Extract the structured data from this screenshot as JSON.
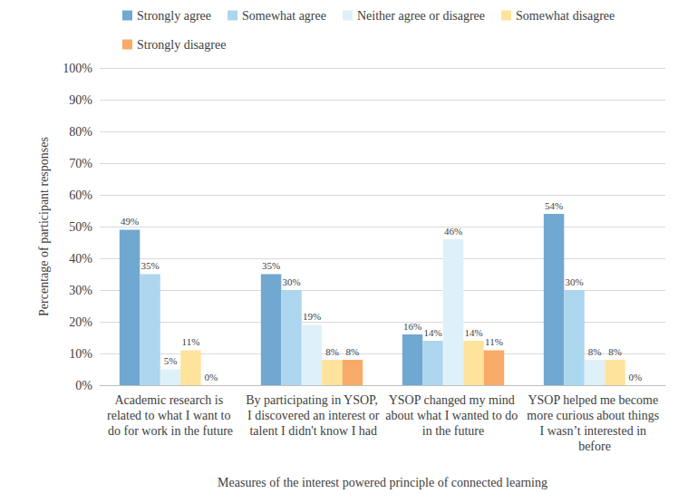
{
  "chart_data": {
    "type": "bar",
    "x_label": "Measures of the interest powered principle of connected learning",
    "y_label": "Percentage of participant responses",
    "categories": [
      "Academic research is related to what I want to do for work in the future",
      "By participating in YSOP, I discovered an interest or talent I didn't know I had",
      "YSOP changed my mind about what I wanted to do in the future",
      "YSOP helped me become more curious about things I wasn’t interested in before"
    ],
    "series": [
      {
        "name": "Strongly agree",
        "color": "#71a8d1",
        "values": [
          49,
          35,
          16,
          54
        ],
        "value_labels": [
          "49%",
          "35%",
          "16%",
          "54%"
        ]
      },
      {
        "name": "Somewhat agree",
        "color": "#acd5ee",
        "values": [
          35,
          30,
          14,
          30
        ],
        "value_labels": [
          "35%",
          "30%",
          "14%",
          "30%"
        ]
      },
      {
        "name": "Neither agree or disagree",
        "color": "#def1f9",
        "values": [
          5,
          19,
          46,
          8
        ],
        "value_labels": [
          "5%",
          "19%",
          "46%",
          "8%"
        ]
      },
      {
        "name": "Somewhat disagree",
        "color": "#fde39c",
        "values": [
          11,
          8,
          14,
          8
        ],
        "value_labels": [
          "11%",
          "8%",
          "14%",
          "8%"
        ]
      },
      {
        "name": "Strongly disagree",
        "color": "#f8ab68",
        "values": [
          0,
          8,
          11,
          0
        ],
        "value_labels": [
          "0%",
          "8%",
          "11%",
          "0%"
        ]
      }
    ],
    "ylim": [
      0,
      100
    ],
    "yticks": [
      {
        "value": 0,
        "label": "0%"
      },
      {
        "value": 10,
        "label": "10%"
      },
      {
        "value": 20,
        "label": "20%"
      },
      {
        "value": 30,
        "label": "30%"
      },
      {
        "value": 40,
        "label": "40%"
      },
      {
        "value": 50,
        "label": "50%"
      },
      {
        "value": 60,
        "label": "60%"
      },
      {
        "value": 70,
        "label": "70%"
      },
      {
        "value": 80,
        "label": "80%"
      },
      {
        "value": 90,
        "label": "90%"
      },
      {
        "value": 100,
        "label": "100%"
      }
    ],
    "grid": true,
    "legend": "top",
    "data_labels": true
  }
}
